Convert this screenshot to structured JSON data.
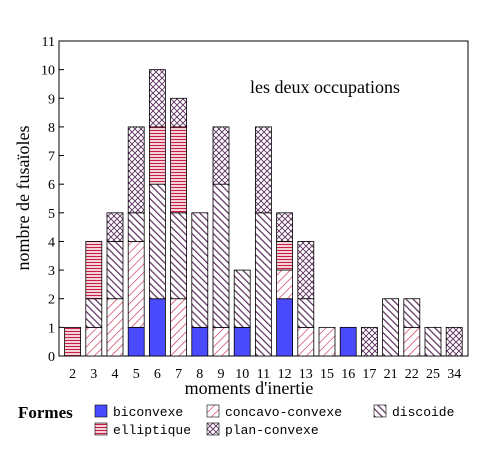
{
  "chart_data": {
    "type": "bar",
    "stacked": true,
    "annotation": "les deux occupations",
    "xlabel": "moments d'inertie",
    "ylabel": "nombre de fusaïoles",
    "ylim": [
      0,
      11
    ],
    "yticks": [
      0,
      1,
      2,
      3,
      4,
      5,
      6,
      7,
      8,
      9,
      10,
      11
    ],
    "categories": [
      "2",
      "3",
      "4",
      "5",
      "6",
      "7",
      "8",
      "9",
      "10",
      "11",
      "12",
      "13",
      "15",
      "16",
      "17",
      "21",
      "22",
      "25",
      "34"
    ],
    "series": [
      {
        "name": "biconvexe",
        "key": "biconvexe",
        "color": "#4a4aff",
        "values": [
          0,
          0,
          0,
          1,
          2,
          0,
          1,
          0,
          1,
          0,
          2,
          0,
          0,
          1,
          0,
          0,
          0,
          0,
          0
        ]
      },
      {
        "name": "concavo-convexe",
        "key": "concavo",
        "color": "#c81e46",
        "values": [
          0,
          1,
          2,
          3,
          0,
          2,
          0,
          1,
          0,
          0,
          1,
          1,
          1,
          0,
          0,
          0,
          1,
          0,
          0
        ]
      },
      {
        "name": "discoide",
        "key": "discoide",
        "color": "#5a2d5a",
        "values": [
          0,
          1,
          2,
          1,
          4,
          3,
          4,
          5,
          2,
          5,
          0,
          1,
          0,
          0,
          0,
          2,
          1,
          1,
          0
        ]
      },
      {
        "name": "elliptique",
        "key": "elliptique",
        "color": "#c81e46",
        "values": [
          1,
          2,
          0,
          0,
          2,
          3,
          0,
          0,
          0,
          0,
          1,
          0,
          0,
          0,
          0,
          0,
          0,
          0,
          0
        ]
      },
      {
        "name": "plan-convexe",
        "key": "plan",
        "color": "#5a2d5a",
        "values": [
          0,
          0,
          1,
          3,
          2,
          1,
          0,
          2,
          0,
          3,
          1,
          2,
          0,
          0,
          1,
          0,
          0,
          0,
          1
        ]
      }
    ],
    "legend_title": "Formes",
    "legend_position": "bottom",
    "grid": false
  }
}
